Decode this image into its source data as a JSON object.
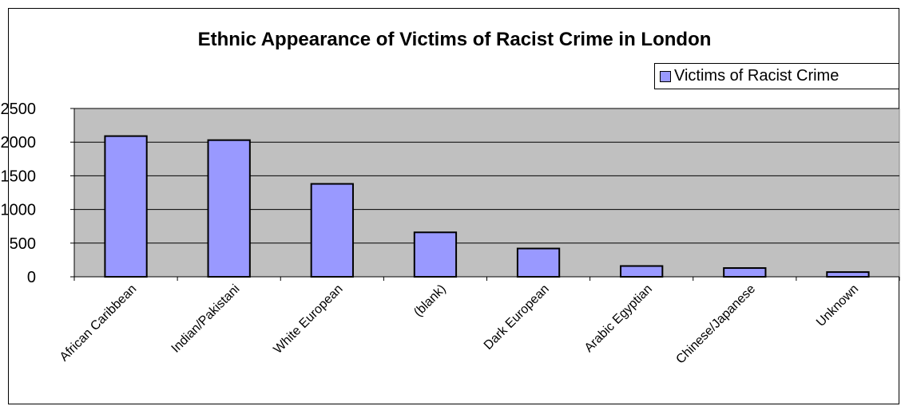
{
  "chart_data": {
    "type": "bar",
    "title": "Ethnic Appearance of Victims of Racist Crime in London",
    "xlabel": "",
    "ylabel": "",
    "categories": [
      "African Caribbean",
      "Indian/Pakistani",
      "White European",
      "(blank)",
      "Dark European",
      "Arabic Egyptian",
      "Chinese/Japanese",
      "Unknown"
    ],
    "series": [
      {
        "name": "Victims of Racist Crime",
        "values": [
          2090,
          2030,
          1380,
          660,
          420,
          160,
          130,
          70
        ]
      }
    ],
    "ylim": [
      0,
      2500
    ],
    "yticks": [
      "0",
      "500",
      "1000",
      "1500",
      "2000",
      "2500"
    ],
    "grid": true,
    "legend": "top-right",
    "colors": {
      "bar": "#9999ff",
      "plot_background": "#c0c0c0",
      "gridline": "#000000"
    }
  }
}
